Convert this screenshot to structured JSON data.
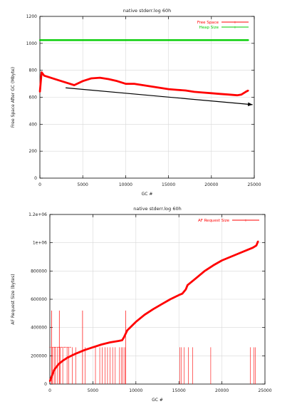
{
  "chart_data": [
    {
      "type": "line",
      "title": "native stderr.log 60h",
      "xlabel": "GC #",
      "ylabel": "Free Space After GC (Mbyte)",
      "xlim": [
        0,
        25000
      ],
      "ylim": [
        0,
        1200
      ],
      "xticks": [
        0,
        5000,
        10000,
        15000,
        20000,
        25000
      ],
      "xtick_labels": [
        "0",
        "5000",
        "10000",
        "15000",
        "20000",
        "25000"
      ],
      "yticks": [
        0,
        200,
        400,
        600,
        800,
        1000,
        1200
      ],
      "ytick_labels": [
        "0",
        "200",
        "400",
        "600",
        "800",
        "1000",
        "1200"
      ],
      "grid": true,
      "legend_position": "top-right",
      "series": [
        {
          "name": "Free Space",
          "color": "#ff0000",
          "x": [
            0,
            200,
            500,
            1000,
            2000,
            3000,
            4000,
            5000,
            6000,
            7000,
            8000,
            9000,
            10000,
            11000,
            12000,
            13000,
            14000,
            15000,
            16000,
            17000,
            18000,
            19000,
            20000,
            21000,
            22000,
            23000,
            23500,
            24000,
            24300
          ],
          "values": [
            640,
            785,
            760,
            750,
            730,
            710,
            690,
            720,
            740,
            745,
            735,
            720,
            700,
            700,
            690,
            680,
            670,
            660,
            655,
            650,
            640,
            635,
            630,
            625,
            620,
            615,
            620,
            640,
            650
          ]
        },
        {
          "name": "Heap Size",
          "color": "#00cc00",
          "x": [
            0,
            24300
          ],
          "values": [
            1024,
            1024
          ]
        }
      ],
      "trend_arrow": {
        "x": [
          3000,
          24800
        ],
        "y": [
          670,
          545
        ],
        "color": "#000000"
      }
    },
    {
      "type": "line",
      "title": "native stderr.log 60h",
      "xlabel": "GC #",
      "ylabel": "AF Request Size (bytes)",
      "xlim": [
        0,
        25000
      ],
      "ylim": [
        0,
        1200000
      ],
      "xticks": [
        0,
        5000,
        10000,
        15000,
        20000,
        25000
      ],
      "xtick_labels": [
        "0",
        "5000",
        "10000",
        "15000",
        "20000",
        "25000"
      ],
      "yticks": [
        0,
        200000,
        400000,
        600000,
        800000,
        1000000,
        1200000
      ],
      "ytick_labels": [
        "0",
        "200000",
        "400000",
        "600000",
        "800000",
        "1e+06",
        "1.2e+06"
      ],
      "grid": true,
      "legend_position": "top-right",
      "series": [
        {
          "name": "AF Request Size",
          "color": "#ff0000",
          "x": [
            0,
            500,
            1000,
            1500,
            2000,
            2500,
            3000,
            4000,
            5000,
            6000,
            7000,
            8000,
            8400,
            8600,
            9000,
            10000,
            11000,
            12000,
            13000,
            14000,
            15000,
            15400,
            15800,
            16000,
            17000,
            18000,
            19000,
            20000,
            21000,
            22000,
            23000,
            23600,
            24000,
            24200
          ],
          "values": [
            20000,
            100000,
            140000,
            165000,
            185000,
            200000,
            215000,
            240000,
            260000,
            280000,
            295000,
            305000,
            310000,
            330000,
            380000,
            440000,
            490000,
            530000,
            565000,
            600000,
            630000,
            640000,
            670000,
            700000,
            750000,
            800000,
            840000,
            875000,
            900000,
            925000,
            950000,
            965000,
            980000,
            1010000
          ]
        }
      ],
      "spike_base": 260000,
      "spikes": [
        300,
        500,
        650,
        900,
        1200,
        1500,
        2000,
        2200,
        2600,
        3000,
        4100,
        5300,
        5800,
        6100,
        6400,
        6700,
        7000,
        7300,
        7600,
        8100,
        8300,
        8500,
        8700,
        15100,
        15300,
        15600,
        16100,
        16600,
        18700,
        23300,
        23700,
        23900
      ],
      "tall_spikes": [
        {
          "x": 200,
          "y": 520000
        },
        {
          "x": 1100,
          "y": 520000
        },
        {
          "x": 3800,
          "y": 520000
        },
        {
          "x": 8800,
          "y": 520000
        }
      ]
    }
  ]
}
